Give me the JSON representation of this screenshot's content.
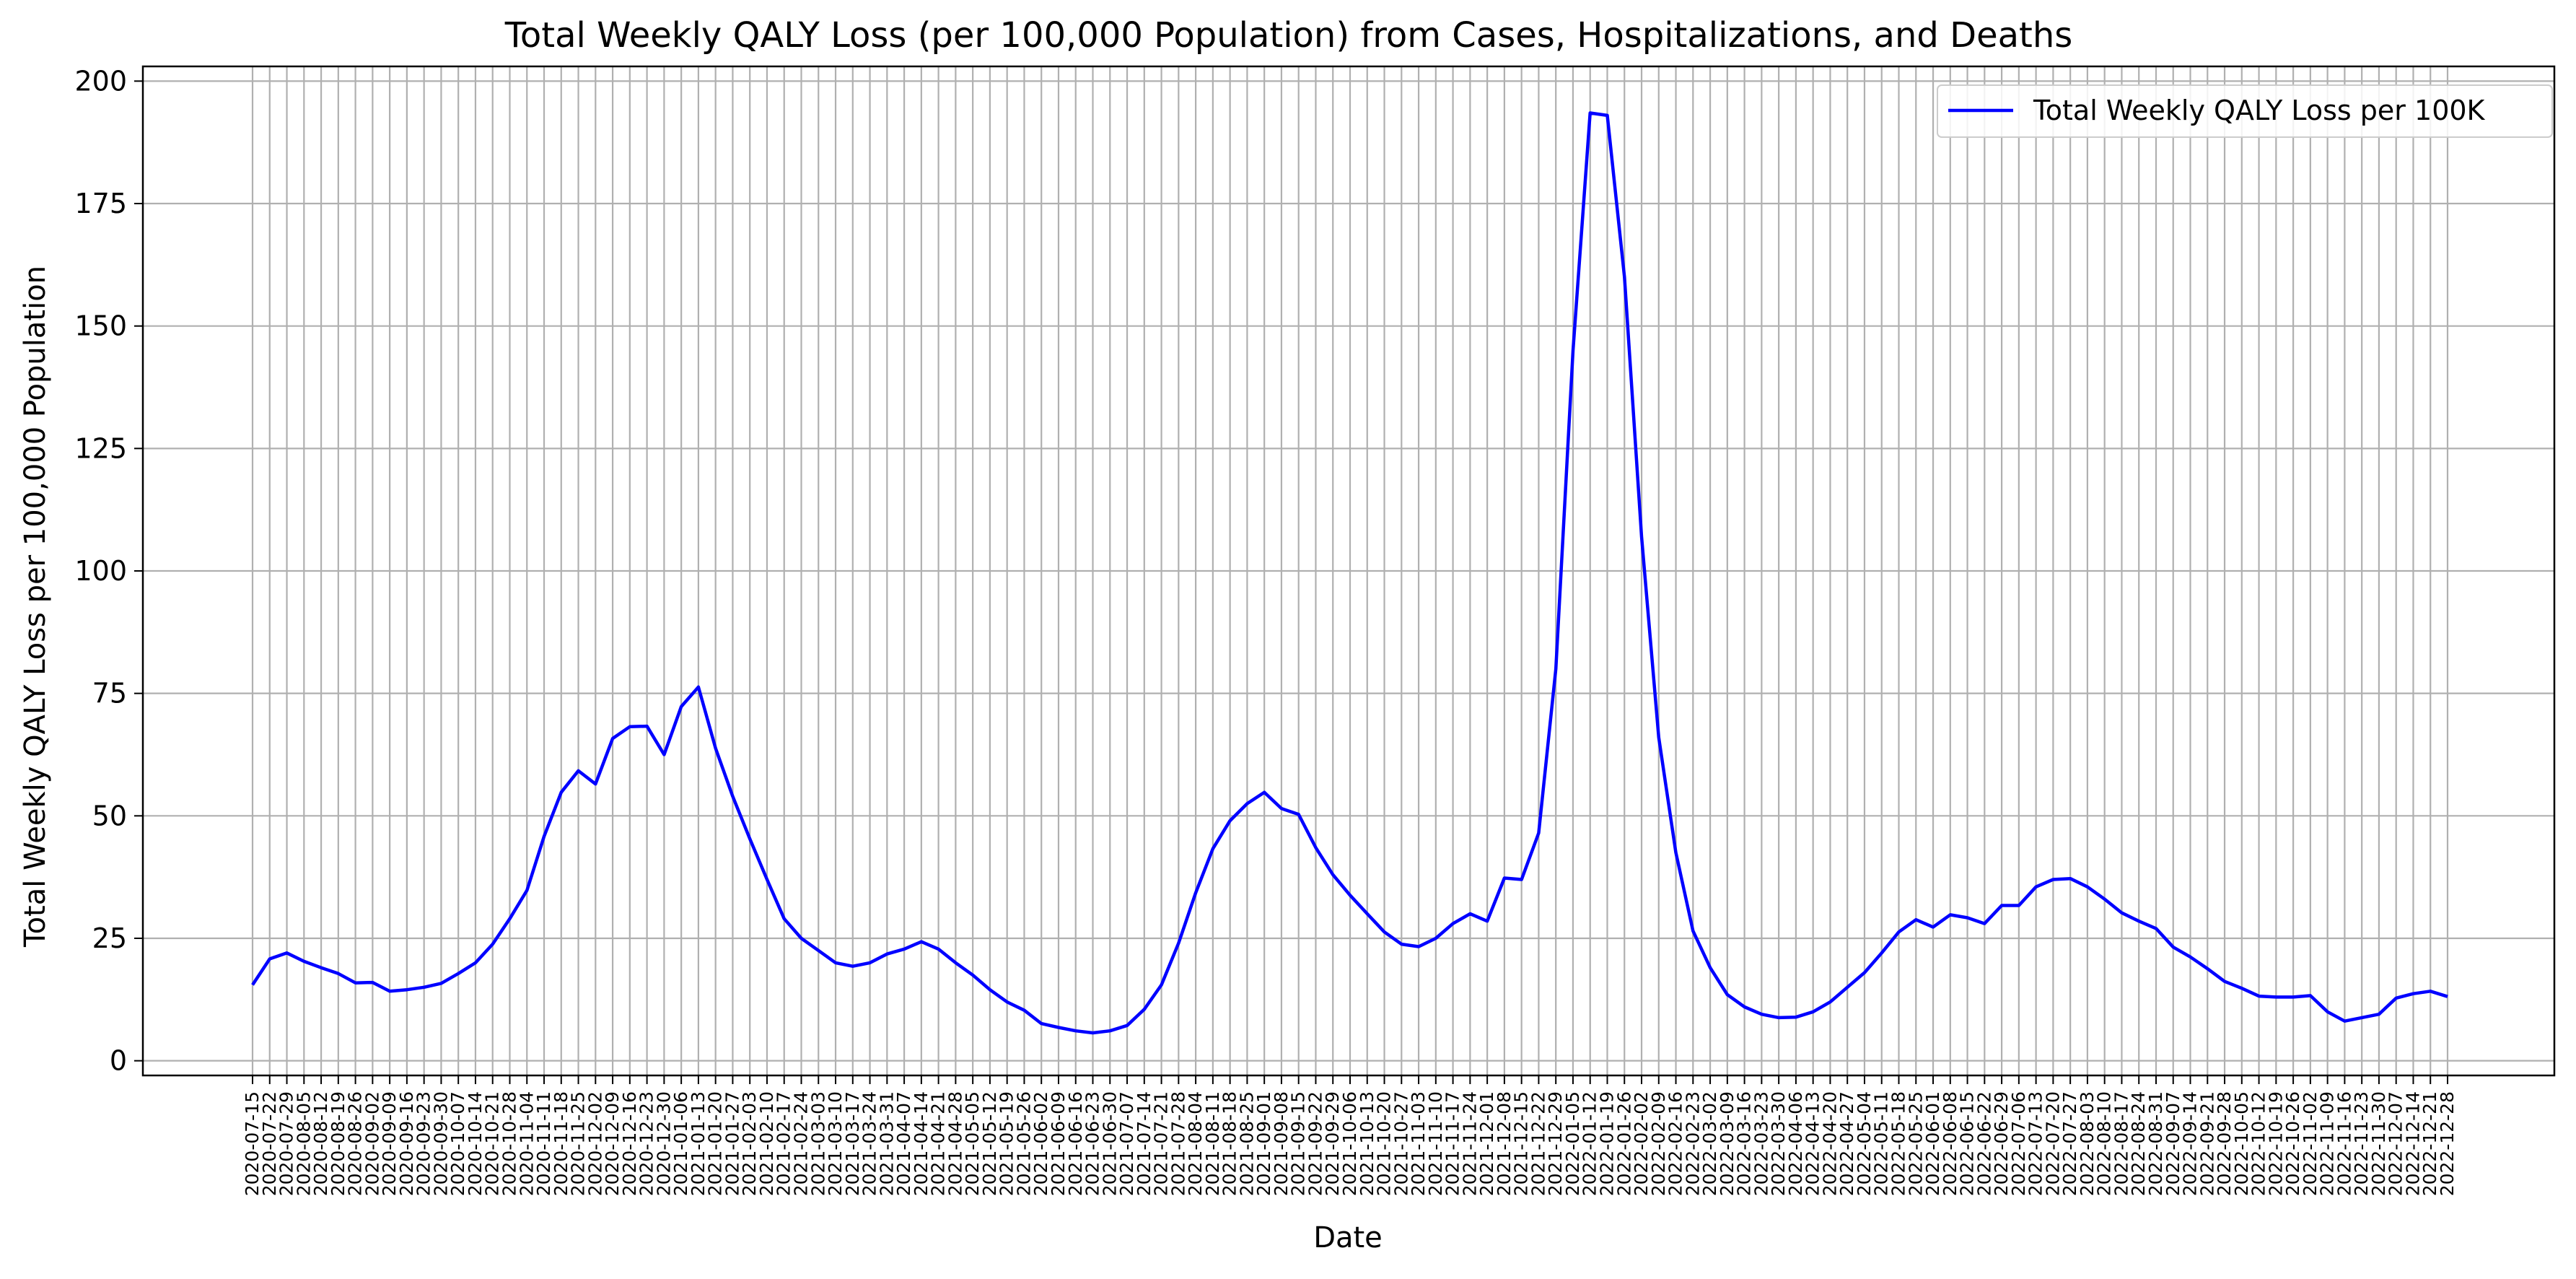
{
  "chart_data": {
    "type": "line",
    "title": "Total Weekly QALY Loss (per 100,000 Population) from Cases, Hospitalizations, and Deaths",
    "xlabel": "Date",
    "ylabel": "Total Weekly QALY Loss per 100,000 Population",
    "ylim": [
      -3,
      203
    ],
    "yticks": [
      0,
      25,
      50,
      75,
      100,
      125,
      150,
      175,
      200
    ],
    "grid": true,
    "legend_position": "upper-right",
    "line_color": "#0000ff",
    "x": [
      "2020-07-15",
      "2020-07-22",
      "2020-07-29",
      "2020-08-05",
      "2020-08-12",
      "2020-08-19",
      "2020-08-26",
      "2020-09-02",
      "2020-09-09",
      "2020-09-16",
      "2020-09-23",
      "2020-09-30",
      "2020-10-07",
      "2020-10-14",
      "2020-10-21",
      "2020-10-28",
      "2020-11-04",
      "2020-11-11",
      "2020-11-18",
      "2020-11-25",
      "2020-12-02",
      "2020-12-09",
      "2020-12-16",
      "2020-12-23",
      "2020-12-30",
      "2021-01-06",
      "2021-01-13",
      "2021-01-20",
      "2021-01-27",
      "2021-02-03",
      "2021-02-10",
      "2021-02-17",
      "2021-02-24",
      "2021-03-03",
      "2021-03-10",
      "2021-03-17",
      "2021-03-24",
      "2021-03-31",
      "2021-04-07",
      "2021-04-14",
      "2021-04-21",
      "2021-04-28",
      "2021-05-05",
      "2021-05-12",
      "2021-05-19",
      "2021-05-26",
      "2021-06-02",
      "2021-06-09",
      "2021-06-16",
      "2021-06-23",
      "2021-06-30",
      "2021-07-07",
      "2021-07-14",
      "2021-07-21",
      "2021-07-28",
      "2021-08-04",
      "2021-08-11",
      "2021-08-18",
      "2021-08-25",
      "2021-09-01",
      "2021-09-08",
      "2021-09-15",
      "2021-09-22",
      "2021-09-29",
      "2021-10-06",
      "2021-10-13",
      "2021-10-20",
      "2021-10-27",
      "2021-11-03",
      "2021-11-10",
      "2021-11-17",
      "2021-11-24",
      "2021-12-01",
      "2021-12-08",
      "2021-12-15",
      "2021-12-22",
      "2021-12-29",
      "2022-01-05",
      "2022-01-12",
      "2022-01-19",
      "2022-01-26",
      "2022-02-02",
      "2022-02-09",
      "2022-02-16",
      "2022-02-23",
      "2022-03-02",
      "2022-03-09",
      "2022-03-16",
      "2022-03-23",
      "2022-03-30",
      "2022-04-06",
      "2022-04-13",
      "2022-04-20",
      "2022-04-27",
      "2022-05-04",
      "2022-05-11",
      "2022-05-18",
      "2022-05-25",
      "2022-06-01",
      "2022-06-08",
      "2022-06-15",
      "2022-06-22",
      "2022-06-29",
      "2022-07-06",
      "2022-07-13",
      "2022-07-20",
      "2022-07-27",
      "2022-08-03",
      "2022-08-10",
      "2022-08-17",
      "2022-08-24",
      "2022-08-31",
      "2022-09-07",
      "2022-09-14",
      "2022-09-21",
      "2022-09-28",
      "2022-10-05",
      "2022-10-12",
      "2022-10-19",
      "2022-10-26",
      "2022-11-02",
      "2022-11-09",
      "2022-11-16",
      "2022-11-23",
      "2022-11-30",
      "2022-12-07",
      "2022-12-14",
      "2022-12-21",
      "2022-12-28"
    ],
    "series": [
      {
        "name": "Total Weekly QALY Loss per 100K",
        "color": "#0000ff",
        "values": [
          15.5,
          20.8,
          22.0,
          20.3,
          19.0,
          17.8,
          15.9,
          16.0,
          14.2,
          14.5,
          15.0,
          15.8,
          17.8,
          20.0,
          23.8,
          29.0,
          34.8,
          45.8,
          54.8,
          59.2,
          56.5,
          65.8,
          68.2,
          68.3,
          62.5,
          72.3,
          76.3,
          63.8,
          54.0,
          45.3,
          37.0,
          29.0,
          25.0,
          22.5,
          20.0,
          19.3,
          20.0,
          21.8,
          22.8,
          24.3,
          22.8,
          20.0,
          17.5,
          14.5,
          12.0,
          10.3,
          7.6,
          6.8,
          6.1,
          5.7,
          6.1,
          7.2,
          10.5,
          15.5,
          24.0,
          34.3,
          43.3,
          49.0,
          52.5,
          54.8,
          51.5,
          50.3,
          43.5,
          38.0,
          33.8,
          30.0,
          26.3,
          23.8,
          23.3,
          25.0,
          28.0,
          30.0,
          28.5,
          37.3,
          37.0,
          46.5,
          80.0,
          145.0,
          193.5,
          193.0,
          160.0,
          107.0,
          66.0,
          42.5,
          26.5,
          19.0,
          13.5,
          11.0,
          9.5,
          8.8,
          8.9,
          10.0,
          12.0,
          15.0,
          18.0,
          22.0,
          26.3,
          28.8,
          27.3,
          29.8,
          29.2,
          28.0,
          31.7,
          31.7,
          35.5,
          37.0,
          37.2,
          35.5,
          33.0,
          30.2,
          28.5,
          27.0,
          23.2,
          21.2,
          18.8,
          16.2,
          14.8,
          13.2,
          13.0,
          13.0,
          13.3,
          10.0,
          8.1,
          8.8,
          9.5,
          12.8,
          13.7,
          14.2,
          13.1
        ]
      }
    ]
  }
}
